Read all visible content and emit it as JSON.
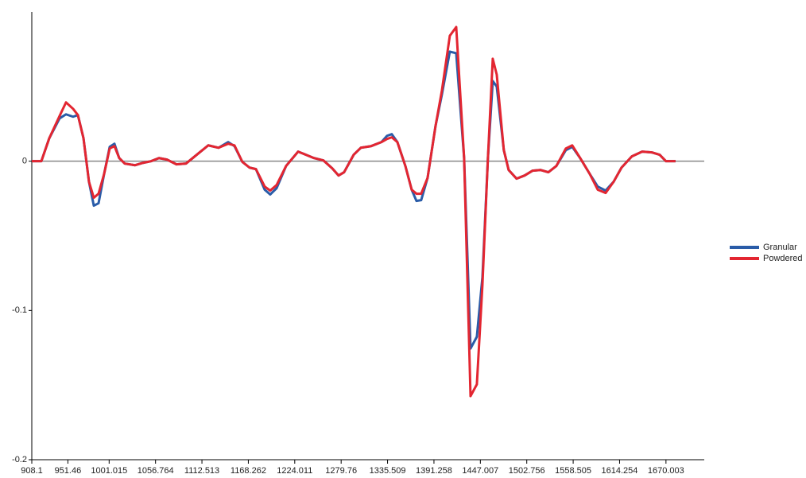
{
  "chart_data": {
    "type": "line",
    "x": [
      908.1,
      919.6,
      929.1,
      941.5,
      949.2,
      957.7,
      963.5,
      970.2,
      976.8,
      982.6,
      988.3,
      995.0,
      1001.7,
      1007.4,
      1013.1,
      1019.8,
      1032.2,
      1041.8,
      1051.3,
      1060.9,
      1070.4,
      1081.9,
      1093.3,
      1103.8,
      1120.1,
      1132.5,
      1144.0,
      1151.6,
      1161.1,
      1169.7,
      1177.4,
      1187.9,
      1194.5,
      1202.2,
      1213.6,
      1228.0,
      1237.5,
      1247.1,
      1258.5,
      1269.0,
      1276.6,
      1283.3,
      1294.8,
      1303.4,
      1315.8,
      1328.2,
      1334.9,
      1340.6,
      1347.3,
      1356.9,
      1364.5,
      1370.2,
      1375.9,
      1383.6,
      1393.1,
      1400.8,
      1410.3,
      1418.0,
      1427.5,
      1435.2,
      1442.8,
      1449.5,
      1456.1,
      1461.9,
      1466.7,
      1475.2,
      1481.0,
      1490.5,
      1500.1,
      1509.6,
      1519.2,
      1528.7,
      1538.3,
      1549.7,
      1557.4,
      1566.9,
      1578.4,
      1588.0,
      1597.5,
      1607.1,
      1616.6,
      1629.0,
      1641.4,
      1652.9,
      1662.4,
      1670.0,
      1681.5
    ],
    "series": [
      {
        "name": "Granular",
        "color": "#2a5ca8",
        "values": [
          0,
          0,
          0.0154,
          0.0287,
          0.0314,
          0.0298,
          0.0309,
          0.0154,
          -0.0138,
          -0.0298,
          -0.0282,
          -0.0085,
          0.0096,
          0.0117,
          0.0021,
          -0.0016,
          -0.0027,
          -0.0011,
          0,
          0.0021,
          0.0011,
          -0.0021,
          -0.0016,
          0.0032,
          0.0106,
          0.009,
          0.0128,
          0.0101,
          -0.0005,
          -0.0043,
          -0.0053,
          -0.0191,
          -0.0223,
          -0.0181,
          -0.0032,
          0.0064,
          0.0043,
          0.0021,
          0.0005,
          -0.0048,
          -0.0096,
          -0.0074,
          0.0043,
          0.009,
          0.0101,
          0.0128,
          0.017,
          0.0181,
          0.0128,
          -0.0032,
          -0.0191,
          -0.0266,
          -0.0261,
          -0.0112,
          0.0234,
          0.0447,
          0.0734,
          0.0723,
          0.0021,
          -0.1255,
          -0.1176,
          -0.0777,
          0.0021,
          0.0537,
          0.05,
          0.0074,
          -0.0059,
          -0.0117,
          -0.0096,
          -0.0064,
          -0.0059,
          -0.0074,
          -0.0032,
          0.0074,
          0.0096,
          0.0021,
          -0.0085,
          -0.017,
          -0.0197,
          -0.0138,
          -0.0043,
          0.0032,
          0.0064,
          0.0059,
          0.0043,
          0,
          0
        ]
      },
      {
        "name": "Powdered",
        "color": "#e32631",
        "values": [
          0,
          0,
          0.0154,
          0.0303,
          0.0394,
          0.0351,
          0.0309,
          0.0154,
          -0.0138,
          -0.0245,
          -0.0218,
          -0.0085,
          0.0085,
          0.0101,
          0.0021,
          -0.0016,
          -0.0027,
          -0.0011,
          0,
          0.0021,
          0.0011,
          -0.0021,
          -0.0016,
          0.0032,
          0.0106,
          0.009,
          0.0117,
          0.0106,
          -0.0005,
          -0.0043,
          -0.0053,
          -0.017,
          -0.0197,
          -0.016,
          -0.0032,
          0.0064,
          0.0043,
          0.0021,
          0.0005,
          -0.0048,
          -0.0096,
          -0.0074,
          0.0043,
          0.009,
          0.0101,
          0.0128,
          0.0149,
          0.016,
          0.0128,
          -0.0032,
          -0.0191,
          -0.0218,
          -0.0218,
          -0.0112,
          0.0234,
          0.0473,
          0.084,
          0.0899,
          0.0021,
          -0.1574,
          -0.1495,
          -0.083,
          0.0021,
          0.0686,
          0.058,
          0.0074,
          -0.0059,
          -0.0117,
          -0.0096,
          -0.0064,
          -0.0059,
          -0.0074,
          -0.0032,
          0.0085,
          0.0106,
          0.0021,
          -0.0085,
          -0.0191,
          -0.0213,
          -0.0138,
          -0.0043,
          0.0032,
          0.0064,
          0.0059,
          0.0043,
          0,
          0
        ]
      }
    ],
    "xlim": [
      908.1,
      1716
    ],
    "xticks": [
      908.1,
      951.46,
      1001.015,
      1056.764,
      1112.513,
      1168.262,
      1224.011,
      1279.76,
      1335.509,
      1391.258,
      1447.007,
      1502.756,
      1558.505,
      1614.254,
      1670.003
    ],
    "ylim": [
      -0.2,
      0.1
    ],
    "yticks": [
      -0.2,
      -0.1,
      0
    ],
    "zero_line_color": "#888888",
    "legend": "right"
  }
}
